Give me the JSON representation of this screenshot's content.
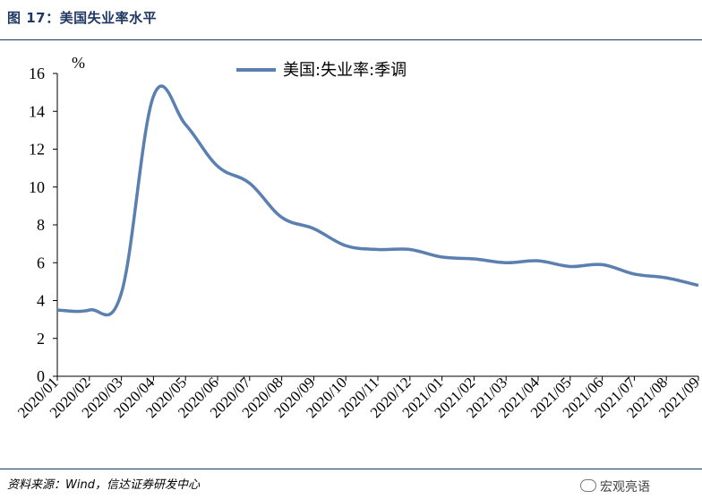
{
  "header": {
    "figure_title": "图 17：美国失业率水平"
  },
  "footer": {
    "source": "资料来源：Wind，信达证券研发中心",
    "watermark": "宏观亮语"
  },
  "colors": {
    "series_line": "#5a7fb0",
    "rule": "#1f3864"
  },
  "chart_data": {
    "type": "line",
    "ylabel": "%",
    "ylim": [
      0,
      16
    ],
    "yticks": [
      0,
      2,
      4,
      6,
      8,
      10,
      12,
      14,
      16
    ],
    "legend_position": "top-center",
    "grid": false,
    "categories": [
      "2020/01",
      "2020/02",
      "2020/03",
      "2020/04",
      "2020/05",
      "2020/06",
      "2020/07",
      "2020/08",
      "2020/09",
      "2020/10",
      "2020/11",
      "2020/12",
      "2021/01",
      "2021/02",
      "2021/03",
      "2021/04",
      "2021/05",
      "2021/06",
      "2021/07",
      "2021/08",
      "2021/09"
    ],
    "series": [
      {
        "name": "美国:失业率:季调",
        "values": [
          3.5,
          3.5,
          4.4,
          14.8,
          13.3,
          11.1,
          10.2,
          8.4,
          7.8,
          6.9,
          6.7,
          6.7,
          6.3,
          6.2,
          6.0,
          6.1,
          5.8,
          5.9,
          5.4,
          5.2,
          4.8
        ]
      }
    ]
  }
}
